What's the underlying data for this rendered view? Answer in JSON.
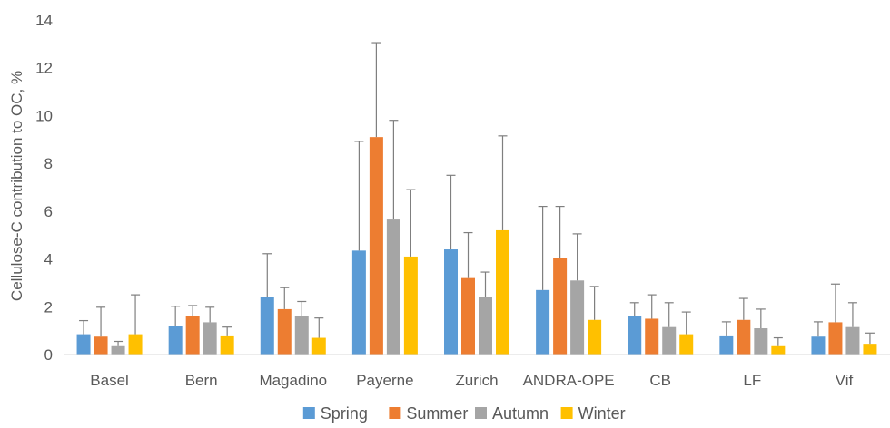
{
  "chart_data": {
    "type": "bar",
    "title": "",
    "xlabel": "",
    "ylabel": "Cellulose-C contribution to OC, %",
    "ylim": [
      0,
      14
    ],
    "yticks": [
      0,
      2,
      4,
      6,
      8,
      10,
      12,
      14
    ],
    "grid": false,
    "legend_position": "bottom",
    "categories": [
      "Basel",
      "Bern",
      "Magadino",
      "Payerne",
      "Zurich",
      "ANDRA-OPE",
      "CB",
      "LF",
      "Vif"
    ],
    "series": [
      {
        "name": "Spring",
        "color": "#5B9BD5",
        "values": [
          0.85,
          1.2,
          2.4,
          4.35,
          4.4,
          2.7,
          1.6,
          0.8,
          0.75
        ],
        "error_upper": [
          1.42,
          2.02,
          4.22,
          8.92,
          7.5,
          6.2,
          2.17,
          1.37,
          1.37
        ]
      },
      {
        "name": "Summer",
        "color": "#ED7D31",
        "values": [
          0.75,
          1.6,
          1.9,
          9.1,
          3.2,
          4.05,
          1.5,
          1.45,
          1.35
        ],
        "error_upper": [
          1.98,
          2.05,
          2.8,
          13.05,
          5.1,
          6.2,
          2.5,
          2.35,
          2.95
        ]
      },
      {
        "name": "Autumn",
        "color": "#A5A5A5",
        "values": [
          0.35,
          1.35,
          1.6,
          5.65,
          2.4,
          3.1,
          1.15,
          1.1,
          1.15
        ],
        "error_upper": [
          0.55,
          1.98,
          2.22,
          9.8,
          3.45,
          5.05,
          2.17,
          1.9,
          2.17
        ]
      },
      {
        "name": "Winter",
        "color": "#FFC000",
        "values": [
          0.85,
          0.8,
          0.7,
          4.1,
          5.2,
          1.45,
          0.85,
          0.35,
          0.45
        ],
        "error_upper": [
          2.5,
          1.15,
          1.53,
          6.9,
          9.15,
          2.85,
          1.78,
          0.7,
          0.9
        ]
      }
    ]
  }
}
